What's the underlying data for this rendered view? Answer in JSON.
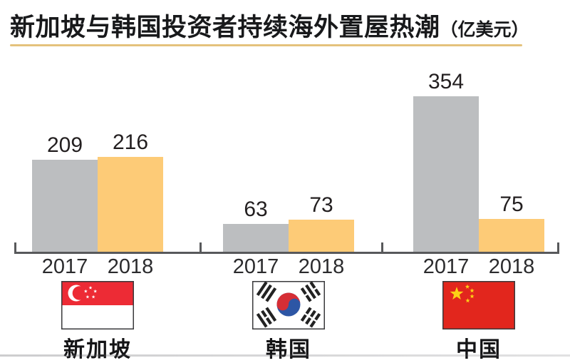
{
  "title": {
    "text": "新加坡与韩国投资者持续海外置屋热潮",
    "unit": "（亿美元）"
  },
  "colors": {
    "bar_2017": "#bcbec0",
    "bar_2018": "#fdcb77",
    "axis": "#58595b",
    "underline": "#e4c27c",
    "label_text": "#231f20"
  },
  "chart_data": {
    "type": "bar",
    "title": "新加坡与韩国投资者持续海外置屋热潮",
    "unit_label": "亿美元",
    "categories": [
      "2017",
      "2018"
    ],
    "legend": "none",
    "grid": false,
    "value_labels": true,
    "ylim": [
      0,
      380
    ],
    "groups": [
      {
        "country": "新加坡",
        "flag": "flag-singapore",
        "values": [
          209,
          216
        ]
      },
      {
        "country": "韩国",
        "flag": "flag-south-korea",
        "values": [
          63,
          73
        ]
      },
      {
        "country": "中国",
        "flag": "flag-china",
        "values": [
          354,
          75
        ]
      }
    ],
    "series": [
      {
        "name": "2017",
        "color": "#bcbec0",
        "values": [
          209,
          63,
          354
        ]
      },
      {
        "name": "2018",
        "color": "#fdcb77",
        "values": [
          216,
          73,
          75
        ]
      }
    ]
  }
}
